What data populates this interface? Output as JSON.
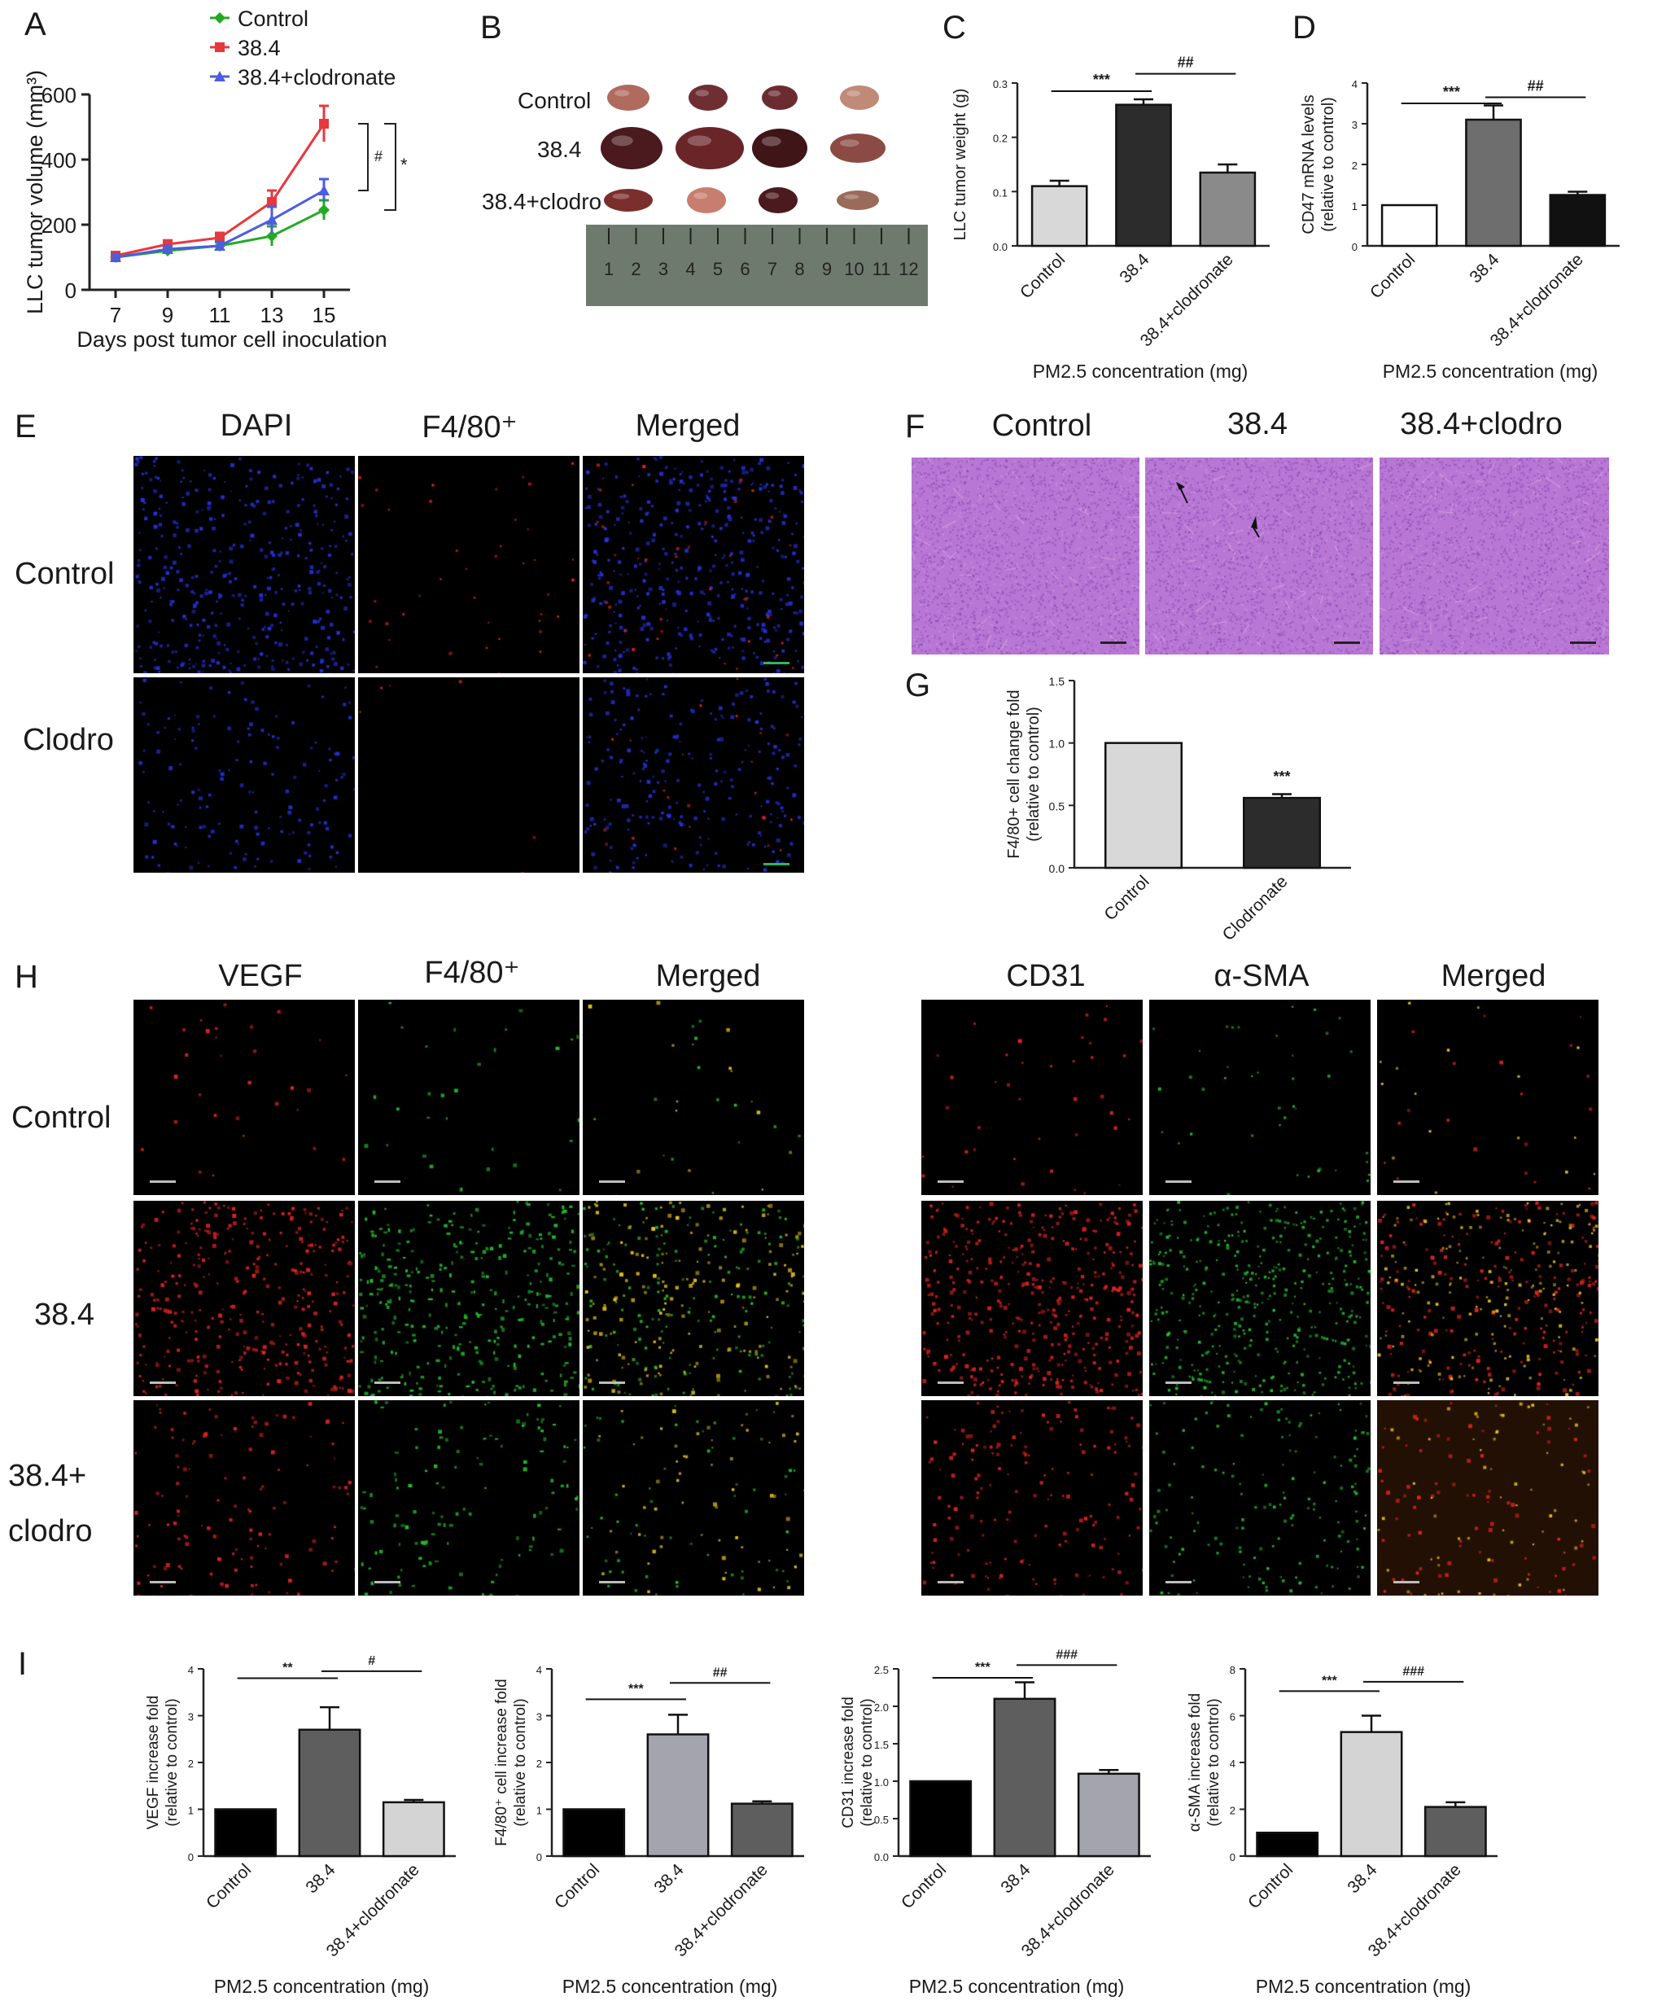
{
  "panels": {
    "A": "A",
    "B": "B",
    "C": "C",
    "D": "D",
    "E": "E",
    "F": "F",
    "G": "G",
    "H": "H",
    "I": "I"
  },
  "colors": {
    "control": "#22aa22",
    "dose": "#e8383d",
    "clodronate": "#4a5ee0",
    "he_tissue": "#b877d4",
    "dapi": "#2233dd",
    "red_stain": "#e0231e",
    "green_stain": "#22c02a",
    "merged_yellow": "#e8c21a"
  },
  "chart_data": [
    {
      "panel": "A",
      "type": "line",
      "xlabel": "Days post tumor cell inoculation",
      "ylabel": "LLC tumor volume (mm³)",
      "x": [
        7,
        9,
        11,
        13,
        15
      ],
      "xlim": [
        6,
        16
      ],
      "ylim": [
        0,
        600
      ],
      "yticks": [
        0,
        200,
        400,
        600
      ],
      "legend_position": "top-left",
      "series": [
        {
          "name": "Control",
          "values": [
            100,
            120,
            135,
            165,
            245
          ],
          "errors": [
            10,
            10,
            12,
            30,
            30
          ]
        },
        {
          "name": "38.4",
          "values": [
            105,
            140,
            160,
            270,
            510
          ],
          "errors": [
            10,
            12,
            15,
            35,
            55
          ]
        },
        {
          "name": "38.4+clodronate",
          "values": [
            100,
            125,
            135,
            215,
            305
          ],
          "errors": [
            8,
            10,
            12,
            40,
            35
          ]
        }
      ],
      "annotations": [
        "#",
        "*"
      ]
    },
    {
      "panel": "C",
      "type": "bar",
      "ylabel": "LLC tumor weight (g)",
      "xlabel": "PM2.5 concentration (mg)",
      "categories": [
        "Control",
        "38.4",
        "38.4+clodronate"
      ],
      "values": [
        0.11,
        0.26,
        0.135
      ],
      "errors": [
        0.01,
        0.01,
        0.015
      ],
      "ylim": [
        0,
        0.3
      ],
      "yticks": [
        "0.0",
        "0.1",
        "0.2",
        "0.3"
      ],
      "significance": [
        "***",
        "##"
      ]
    },
    {
      "panel": "D",
      "type": "bar",
      "ylabel": "CD47 mRNA levels (relative to control)",
      "xlabel": "PM2.5 concentration (mg)",
      "categories": [
        "Control",
        "38.4",
        "38.4+clodronate"
      ],
      "values": [
        1.0,
        3.1,
        1.25
      ],
      "errors": [
        0,
        0.35,
        0.08
      ],
      "ylim": [
        0,
        4
      ],
      "yticks": [
        "0",
        "1",
        "2",
        "3",
        "4"
      ],
      "significance": [
        "***",
        "##"
      ]
    },
    {
      "panel": "G",
      "type": "bar",
      "ylabel": "F4/80+ cell change fold (relative to control)",
      "categories": [
        "Control",
        "Clodronate"
      ],
      "values": [
        1.0,
        0.56
      ],
      "errors": [
        0,
        0.03
      ],
      "ylim": [
        0,
        1.5
      ],
      "yticks": [
        "0.0",
        "0.5",
        "1.0",
        "1.5"
      ],
      "significance": [
        "***"
      ]
    },
    {
      "panel": "I1",
      "type": "bar",
      "ylabel": "VEGF increase fold (relative to control)",
      "xlabel": "PM2.5 concentration (mg)",
      "categories": [
        "Control",
        "38.4",
        "38.4+clodronate"
      ],
      "values": [
        1.0,
        2.7,
        1.15
      ],
      "errors": [
        0,
        0.48,
        0.05
      ],
      "ylim": [
        0,
        4
      ],
      "yticks": [
        "0",
        "1",
        "2",
        "3",
        "4"
      ],
      "significance": [
        "**",
        "#"
      ]
    },
    {
      "panel": "I2",
      "type": "bar",
      "ylabel": "F4/80⁺ cell increase fold (relative to control)",
      "xlabel": "PM2.5 concentration (mg)",
      "categories": [
        "Control",
        "38.4",
        "38.4+clodronate"
      ],
      "values": [
        1.0,
        2.6,
        1.12
      ],
      "errors": [
        0,
        0.42,
        0.05
      ],
      "ylim": [
        0,
        4
      ],
      "yticks": [
        "0",
        "1",
        "2",
        "3",
        "4"
      ],
      "significance": [
        "***",
        "##"
      ]
    },
    {
      "panel": "I3",
      "type": "bar",
      "ylabel": "CD31 increase fold (relative to control)",
      "xlabel": "PM2.5 concentration (mg)",
      "categories": [
        "Control",
        "38.4",
        "38.4+clodronate"
      ],
      "values": [
        1.0,
        2.1,
        1.1
      ],
      "errors": [
        0,
        0.22,
        0.05
      ],
      "ylim": [
        0,
        2.5
      ],
      "yticks": [
        "0.0",
        "0.5",
        "1.0",
        "1.5",
        "2.0",
        "2.5"
      ],
      "significance": [
        "***",
        "###"
      ]
    },
    {
      "panel": "I4",
      "type": "bar",
      "ylabel": "α-SMA increase fold (relative to control)",
      "xlabel": "PM2.5 concentration (mg)",
      "categories": [
        "Control",
        "38.4",
        "38.4+clodronate"
      ],
      "values": [
        1.0,
        5.3,
        2.1
      ],
      "errors": [
        0,
        0.7,
        0.2
      ],
      "ylim": [
        0,
        8
      ],
      "yticks": [
        "0",
        "2",
        "4",
        "6",
        "8"
      ],
      "significance": [
        "***",
        "###"
      ]
    }
  ],
  "panel_B": {
    "rows": [
      "Control",
      "38.4",
      "38.4+clodro"
    ],
    "ruler_numbers": [
      "1",
      "2",
      "3",
      "4",
      "5",
      "6",
      "7",
      "8",
      "9",
      "10",
      "11",
      "12"
    ]
  },
  "panel_E": {
    "columns": [
      "DAPI",
      "F4/80⁺",
      "Merged"
    ],
    "rows": [
      "Control",
      "Clodro"
    ]
  },
  "panel_F": {
    "columns": [
      "Control",
      "38.4",
      "38.4+clodro"
    ]
  },
  "panel_H_left": {
    "columns": [
      "VEGF",
      "F4/80⁺",
      "Merged"
    ],
    "rows": [
      "Control",
      "38.4",
      "38.4+",
      "clodro"
    ]
  },
  "panel_H_right": {
    "columns": [
      "CD31",
      "α-SMA",
      "Merged"
    ]
  }
}
